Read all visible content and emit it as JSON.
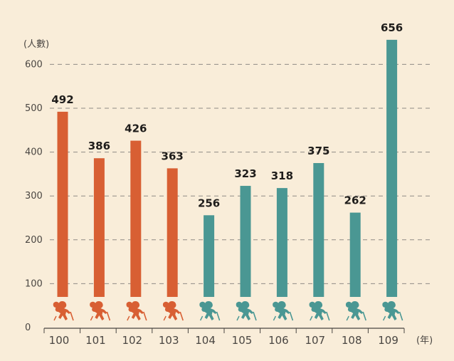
{
  "chart_data": {
    "type": "bar",
    "title": "",
    "ylabel": "(人數)",
    "xlabel": "(年)",
    "categories": [
      "100",
      "101",
      "102",
      "103",
      "104",
      "105",
      "106",
      "107",
      "108",
      "109"
    ],
    "values": [
      492,
      386,
      426,
      363,
      256,
      323,
      318,
      375,
      262,
      656
    ],
    "yticks": [
      0,
      100,
      200,
      300,
      400,
      500,
      600
    ],
    "ylim": [
      0,
      700
    ],
    "grid": true,
    "bar_icon": "hiker-icon",
    "group_split_index": 4
  },
  "colors": {
    "background": "#f9edd9",
    "series_a": "#d85f33",
    "series_b": "#4a9793",
    "grid": "#8f8b85",
    "axis": "#4a4642",
    "text": "#4a4642",
    "label": "#1f1d1b"
  }
}
